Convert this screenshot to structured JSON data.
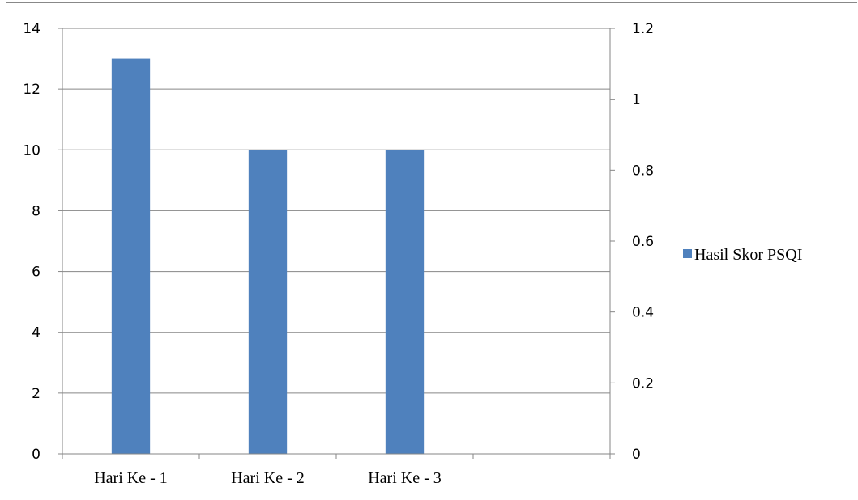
{
  "chart_data": {
    "type": "bar",
    "categories": [
      "Hari Ke - 1",
      "Hari Ke - 2",
      "Hari Ke - 3",
      ""
    ],
    "series": [
      {
        "name": "Hasil Skor PSQI",
        "values": [
          13,
          10,
          10,
          null
        ],
        "color": "#4F81BD"
      }
    ],
    "ylim": [
      0,
      14
    ],
    "yticks": [
      "0",
      "2",
      "4",
      "6",
      "8",
      "10",
      "12",
      "14"
    ],
    "y2lim": [
      0,
      1.2
    ],
    "y2ticks": [
      "0",
      "0.2",
      "0.4",
      "0.6",
      "0.8",
      "1",
      "1.2"
    ],
    "grid": true,
    "legend": "right"
  }
}
